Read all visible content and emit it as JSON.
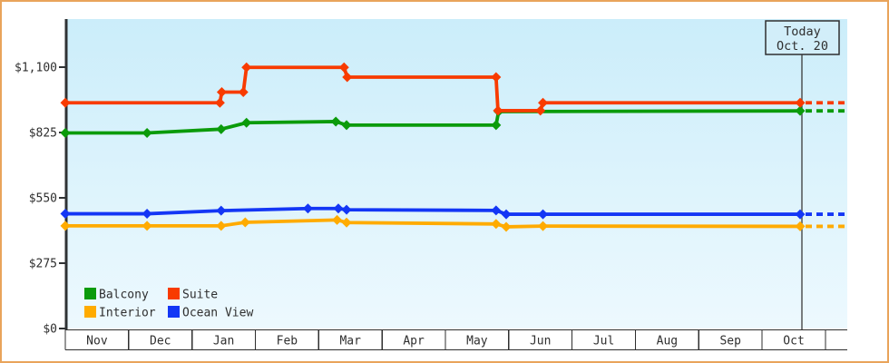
{
  "page": {
    "border_color": "#e9a45b",
    "background_color": "#ffffff",
    "plot_gradient_top": "#cbedfa",
    "plot_gradient_bottom": "#edf9fe",
    "axis_color": "#2f3234",
    "text_color": "#2f2f2f"
  },
  "today_marker": {
    "line1": "Today",
    "line2": "Oct. 20",
    "x_month": 11.6,
    "box_fill": "#d2eef9",
    "box_border": "#2f2f2f"
  },
  "chart_data": {
    "type": "line",
    "title": "",
    "x_categories": [
      "Nov",
      "Dec",
      "Jan",
      "Feb",
      "Mar",
      "Apr",
      "May",
      "Jun",
      "Jul",
      "Aug",
      "Sep",
      "Oct"
    ],
    "y_ticks": [
      {
        "label": "$0",
        "value": 0
      },
      {
        "label": "$275",
        "value": 275
      },
      {
        "label": "$550",
        "value": 550
      },
      {
        "label": "$825",
        "value": 825
      },
      {
        "label": "$1,100",
        "value": 1100
      }
    ],
    "ylim": [
      0,
      1300
    ],
    "grid": false,
    "legend_position": "bottom-left",
    "legend_order": [
      "Balcony",
      "Suite",
      "Interior",
      "Ocean View"
    ],
    "series": [
      {
        "name": "Interior",
        "color": "#ffab00",
        "dash_value": 430,
        "points": [
          [
            0,
            432
          ],
          [
            1.29,
            432
          ],
          [
            2.46,
            432
          ],
          [
            2.84,
            447
          ],
          [
            4.29,
            457
          ],
          [
            4.44,
            446
          ],
          [
            6.8,
            440
          ],
          [
            6.96,
            428
          ],
          [
            7.54,
            431
          ],
          [
            11.6,
            430
          ]
        ]
      },
      {
        "name": "Ocean View",
        "color": "#1336f5",
        "dash_value": 481,
        "points": [
          [
            0,
            483
          ],
          [
            1.29,
            483
          ],
          [
            2.46,
            496
          ],
          [
            3.83,
            505
          ],
          [
            4.31,
            505
          ],
          [
            4.44,
            500
          ],
          [
            6.8,
            497
          ],
          [
            6.96,
            481
          ],
          [
            7.54,
            481
          ],
          [
            11.6,
            481
          ]
        ]
      },
      {
        "name": "Balcony",
        "color": "#0b9b0b",
        "dash_value": 916,
        "points": [
          [
            0,
            823
          ],
          [
            1.29,
            823
          ],
          [
            2.46,
            839
          ],
          [
            2.86,
            866
          ],
          [
            4.27,
            871
          ],
          [
            4.44,
            856
          ],
          [
            6.8,
            856
          ],
          [
            6.84,
            913
          ],
          [
            11.6,
            916
          ]
        ]
      },
      {
        "name": "Suite",
        "color": "#f83b00",
        "dash_value": 950,
        "points": [
          [
            0,
            950
          ],
          [
            2.44,
            950
          ],
          [
            2.47,
            995
          ],
          [
            2.81,
            995
          ],
          [
            2.86,
            1099
          ],
          [
            4.4,
            1099
          ],
          [
            4.45,
            1058
          ],
          [
            6.8,
            1058
          ],
          [
            6.83,
            917
          ],
          [
            7.5,
            917
          ],
          [
            7.54,
            950
          ],
          [
            11.6,
            950
          ]
        ]
      }
    ]
  }
}
